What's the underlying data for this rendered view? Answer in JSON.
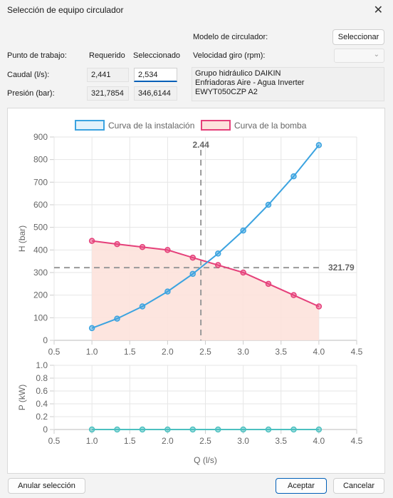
{
  "window": {
    "title": "Selección de equipo circulador",
    "close_glyph": "✕"
  },
  "form": {
    "modelo_label": "Modelo de circulador:",
    "seleccionar_label": "Seleccionar",
    "punto_label": "Punto de trabajo:",
    "requerido_label": "Requerido",
    "seleccionado_label": "Seleccionado",
    "velocidad_label": "Velocidad giro (rpm):",
    "caudal_label": "Caudal (l/s):",
    "presion_label": "Presión (bar):",
    "caudal_requerido": "2,441",
    "caudal_seleccionado": "2,534",
    "presion_requerido": "321,7854",
    "presion_seleccionado": "346,6144",
    "velocidad_value": "",
    "equipo_lines": [
      "Grupo hidráulico DAIKIN",
      "Enfriadoras Aire - Agua Inverter",
      "EWYT050CZP A2"
    ]
  },
  "footer": {
    "anular_label": "Anular selección",
    "aceptar_label": "Aceptar",
    "cancelar_label": "Cancelar"
  },
  "colors": {
    "installation": "#3ba3e0",
    "pump": "#e5407a",
    "power": "#4bc0c0",
    "pump_fill": "#fde2dc",
    "accent": "#005fb8"
  },
  "chart_data": [
    {
      "type": "line",
      "legend_position": "top",
      "ylabel": "H (bar)",
      "xlim": [
        0.5,
        4.5
      ],
      "ylim": [
        0,
        900
      ],
      "xticks": [
        "0.5",
        "1.0",
        "1.5",
        "2.0",
        "2.5",
        "3.0",
        "3.5",
        "4.0",
        "4.5"
      ],
      "yticks": [
        "0",
        "100",
        "200",
        "300",
        "400",
        "500",
        "600",
        "700",
        "800",
        "900"
      ],
      "grid": true,
      "series": [
        {
          "name": "Curva de la instalación",
          "x": [
            1.0,
            1.333,
            1.667,
            2.0,
            2.333,
            2.667,
            3.0,
            3.333,
            3.667,
            4.0
          ],
          "y": [
            54,
            96,
            150,
            216,
            294,
            384,
            486,
            600,
            726,
            864
          ]
        },
        {
          "name": "Curva de la bomba",
          "x": [
            1.0,
            1.333,
            1.667,
            2.0,
            2.333,
            2.667,
            3.0,
            3.333,
            3.667,
            4.0
          ],
          "y": [
            440,
            426,
            413,
            400,
            366,
            333,
            300,
            250,
            200,
            150
          ]
        }
      ],
      "annotations": [
        {
          "axis": "x",
          "value": 2.44,
          "label": "2.44"
        },
        {
          "axis": "y",
          "value": 321.79,
          "label": "321.79"
        }
      ]
    },
    {
      "type": "line",
      "xlabel": "Q (l/s)",
      "ylabel": "P (kW)",
      "xlim": [
        0.5,
        4.5
      ],
      "ylim": [
        0,
        1.0
      ],
      "xticks": [
        "0.5",
        "1.0",
        "1.5",
        "2.0",
        "2.5",
        "3.0",
        "3.5",
        "4.0",
        "4.5"
      ],
      "yticks": [
        "0",
        "0.2",
        "0.4",
        "0.6",
        "0.8",
        "1.0"
      ],
      "grid": true,
      "series": [
        {
          "x": [
            1.0,
            1.333,
            1.667,
            2.0,
            2.333,
            2.667,
            3.0,
            3.333,
            3.667,
            4.0
          ],
          "y": [
            0,
            0,
            0,
            0,
            0,
            0,
            0,
            0,
            0,
            0
          ]
        }
      ]
    }
  ]
}
